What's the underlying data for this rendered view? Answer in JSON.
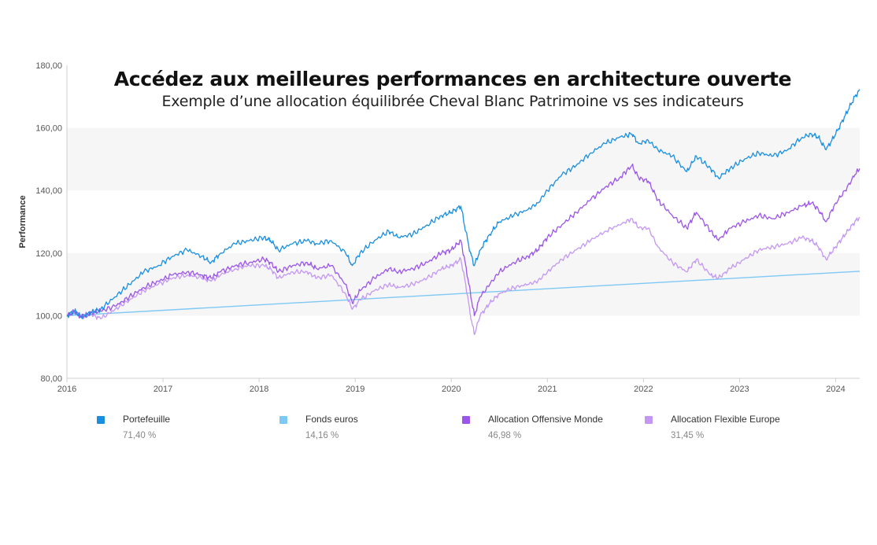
{
  "header": {
    "title": "Accédez aux meilleures performances en architecture ouverte",
    "subtitle": "Exemple d’une allocation équilibrée Cheval Blanc Patrimoine vs ses indicateurs"
  },
  "chart_data": {
    "type": "line",
    "ylabel": "Performance",
    "xlabel": "",
    "ylim": [
      80,
      180
    ],
    "yticks": [
      "80,00",
      "100,00",
      "120,00",
      "140,00",
      "160,00",
      "180,00"
    ],
    "xlim": [
      2016.0,
      2024.25
    ],
    "xticks": [
      "2016",
      "2017",
      "2018",
      "2019",
      "2020",
      "2021",
      "2022",
      "2023",
      "2024"
    ],
    "grid": "alternating horizontal bands",
    "legend_position": "bottom",
    "series": [
      {
        "name": "Portefeuille",
        "color": "#1a8fe0",
        "total": "71,40 %",
        "x": [
          2016.0,
          2016.08,
          2016.15,
          2016.25,
          2016.35,
          2016.5,
          2016.65,
          2016.8,
          2016.95,
          2017.1,
          2017.25,
          2017.4,
          2017.5,
          2017.6,
          2017.75,
          2017.9,
          2018.05,
          2018.12,
          2018.2,
          2018.35,
          2018.5,
          2018.6,
          2018.75,
          2018.9,
          2018.97,
          2019.05,
          2019.2,
          2019.35,
          2019.45,
          2019.6,
          2019.75,
          2019.9,
          2020.0,
          2020.1,
          2020.15,
          2020.2,
          2020.24,
          2020.3,
          2020.4,
          2020.5,
          2020.65,
          2020.8,
          2020.9,
          2021.0,
          2021.15,
          2021.3,
          2021.45,
          2021.6,
          2021.75,
          2021.88,
          2021.95,
          2022.05,
          2022.15,
          2022.3,
          2022.45,
          2022.55,
          2022.7,
          2022.78,
          2022.9,
          2023.05,
          2023.2,
          2023.35,
          2023.5,
          2023.65,
          2023.75,
          2023.82,
          2023.9,
          2024.0,
          2024.1,
          2024.2,
          2024.25
        ],
        "y": [
          100,
          101.5,
          99.5,
          101,
          102,
          106,
          110,
          114,
          116,
          119,
          121,
          119,
          117,
          120,
          123,
          124,
          125,
          124,
          121,
          123,
          124,
          123,
          124,
          120,
          116,
          120,
          124,
          127,
          125,
          126,
          129,
          132,
          133,
          135,
          127,
          120,
          116,
          121,
          126,
          130,
          132,
          134,
          136,
          140,
          145,
          148,
          152,
          155,
          157,
          158,
          155,
          156,
          153,
          151,
          146,
          151,
          147,
          144,
          147,
          150,
          152,
          151,
          153,
          157,
          158,
          157,
          153,
          158,
          164,
          170,
          172
        ]
      },
      {
        "name": "Fonds euros",
        "color": "#7ec8f5",
        "total": "14,16 %",
        "x": [
          2016.0,
          2024.25
        ],
        "y": [
          100,
          114.2
        ]
      },
      {
        "name": "Allocation Offensive Monde",
        "color": "#9b55e8",
        "total": "46,98 %",
        "x": [
          2016.0,
          2016.08,
          2016.15,
          2016.25,
          2016.35,
          2016.5,
          2016.65,
          2016.8,
          2016.95,
          2017.1,
          2017.25,
          2017.4,
          2017.5,
          2017.6,
          2017.75,
          2017.9,
          2018.05,
          2018.12,
          2018.2,
          2018.35,
          2018.5,
          2018.6,
          2018.75,
          2018.9,
          2018.97,
          2019.05,
          2019.2,
          2019.35,
          2019.45,
          2019.6,
          2019.75,
          2019.9,
          2020.0,
          2020.1,
          2020.15,
          2020.2,
          2020.24,
          2020.3,
          2020.4,
          2020.5,
          2020.65,
          2020.8,
          2020.9,
          2021.0,
          2021.15,
          2021.3,
          2021.45,
          2021.6,
          2021.75,
          2021.88,
          2021.95,
          2022.05,
          2022.15,
          2022.3,
          2022.45,
          2022.55,
          2022.7,
          2022.78,
          2022.9,
          2023.05,
          2023.2,
          2023.35,
          2023.5,
          2023.65,
          2023.75,
          2023.82,
          2023.9,
          2024.0,
          2024.1,
          2024.2,
          2024.25
        ],
        "y": [
          100,
          101.5,
          99.5,
          101,
          101.5,
          103,
          106,
          109,
          111,
          113,
          114,
          113,
          112,
          114,
          116,
          117,
          118,
          117,
          114,
          116,
          117,
          115,
          116,
          110,
          104,
          108,
          112,
          115,
          114,
          115,
          117,
          120,
          121,
          124,
          116,
          107,
          100,
          106,
          110,
          114,
          117,
          119,
          121,
          125,
          129,
          133,
          137,
          141,
          144,
          148,
          144,
          143,
          137,
          132,
          128,
          133,
          127,
          124,
          128,
          130,
          132,
          131,
          133,
          135,
          136,
          134,
          130,
          136,
          140,
          145,
          147
        ]
      },
      {
        "name": "Allocation Flexible Europe",
        "color": "#c497f2",
        "total": "31,45 %",
        "x": [
          2016.0,
          2016.08,
          2016.15,
          2016.25,
          2016.35,
          2016.5,
          2016.65,
          2016.8,
          2016.95,
          2017.1,
          2017.25,
          2017.4,
          2017.5,
          2017.6,
          2017.75,
          2017.9,
          2018.05,
          2018.12,
          2018.2,
          2018.35,
          2018.5,
          2018.6,
          2018.75,
          2018.9,
          2018.97,
          2019.05,
          2019.2,
          2019.35,
          2019.45,
          2019.6,
          2019.75,
          2019.9,
          2020.0,
          2020.1,
          2020.15,
          2020.2,
          2020.24,
          2020.3,
          2020.4,
          2020.5,
          2020.65,
          2020.8,
          2020.9,
          2021.0,
          2021.15,
          2021.3,
          2021.45,
          2021.6,
          2021.75,
          2021.88,
          2021.95,
          2022.05,
          2022.15,
          2022.3,
          2022.45,
          2022.55,
          2022.7,
          2022.78,
          2022.9,
          2023.05,
          2023.2,
          2023.35,
          2023.5,
          2023.65,
          2023.75,
          2023.82,
          2023.9,
          2024.0,
          2024.1,
          2024.2,
          2024.25
        ],
        "y": [
          100,
          101,
          99.5,
          100.5,
          99,
          102,
          105,
          108,
          110,
          112,
          113,
          112,
          111,
          113,
          115,
          116,
          116,
          115,
          112,
          114,
          114,
          112,
          113,
          107,
          102,
          105,
          108,
          110,
          109,
          110,
          112,
          115,
          116,
          118,
          110,
          100,
          94,
          100,
          104,
          107,
          109,
          110,
          111,
          114,
          118,
          121,
          124,
          127,
          129,
          131,
          128,
          128,
          122,
          117,
          114,
          118,
          113,
          112,
          115,
          118,
          121,
          122,
          123,
          125,
          124,
          122,
          118,
          122,
          126,
          130,
          131.5
        ]
      }
    ]
  }
}
